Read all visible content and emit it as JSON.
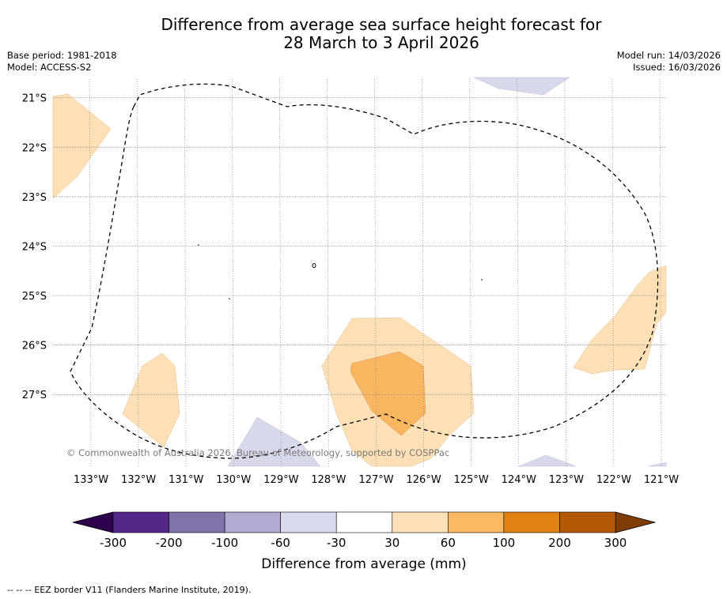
{
  "title": {
    "line1": "Difference from average sea surface height forecast for",
    "line2": "28 March to 3 April 2026"
  },
  "meta": {
    "base_period": "Base period: 1981-2018",
    "model": "Model: ACCESS-S2",
    "model_run": "Model run: 14/03/2026",
    "issued": "Issued: 16/03/2026"
  },
  "map": {
    "lon_range": [
      -133.8,
      -120.9
    ],
    "lat_range": [
      -28.45,
      -20.59
    ],
    "lon_labels": [
      "133°W",
      "132°W",
      "131°W",
      "130°W",
      "129°W",
      "128°W",
      "127°W",
      "126°W",
      "125°W",
      "124°W",
      "123°W",
      "122°W",
      "121°W"
    ],
    "lat_labels": [
      "21°S",
      "22°S",
      "23°S",
      "24°S",
      "25°S",
      "26°S",
      "27°S"
    ],
    "copyright": "© Commonwealth of Australia 2026, Bureau of Meteorology, supported by COSPPac",
    "colors": {
      "c30_60": "#fde0b6",
      "c60_100": "#f9b660",
      "cm60_m30": "#d8d8eb",
      "eez_line": "#000000"
    }
  },
  "colorbar": {
    "tick_labels": [
      "-300",
      "-200",
      "-100",
      "-60",
      "-30",
      "30",
      "60",
      "100",
      "200",
      "300"
    ],
    "label": "Difference from average (mm)",
    "colors": [
      "#2d004b",
      "#542788",
      "#8073ac",
      "#b2abd2",
      "#d8daeb",
      "#ffffff",
      "#fee0b6",
      "#fdb863",
      "#e08214",
      "#b35806",
      "#7f3b08"
    ]
  },
  "footnote": {
    "dashes": "--  --  --",
    "text": "EEZ border V11 (Flanders Marine Institute, 2019)."
  }
}
